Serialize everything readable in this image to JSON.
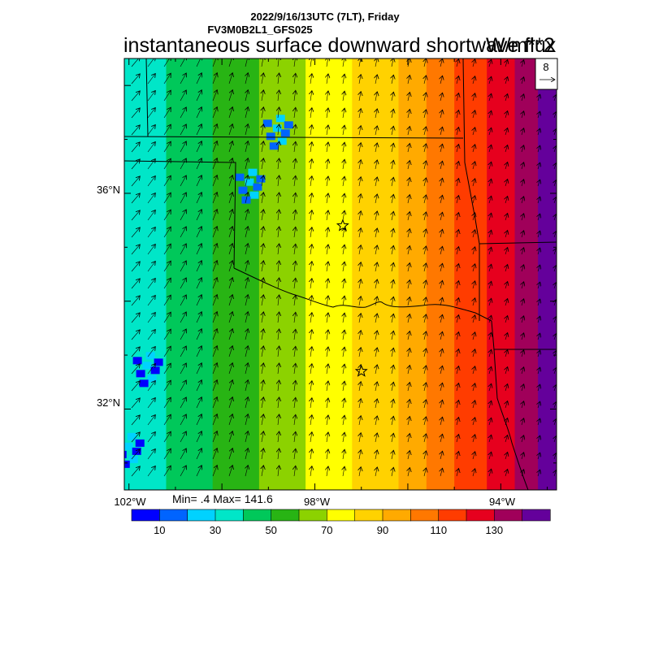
{
  "header": {
    "line1": "2022/9/16/13UTC (7LT), Friday",
    "line2": "FV3M0B2L1_GFS025",
    "title": "instantaneous surface downward shortwave flux",
    "units": "W/m**2"
  },
  "map": {
    "lat_labels": [
      "36°N",
      "32°N"
    ],
    "lon_labels": [
      "102°W",
      "98°W",
      "94°W"
    ],
    "vector_ref": "8",
    "min_max": "Min= .4 Max= 141.6"
  },
  "colorbar": {
    "colors": [
      "#0000ff",
      "#0064ff",
      "#00d2ff",
      "#00e6c8",
      "#00c85a",
      "#28b414",
      "#8cd200",
      "#ffff00",
      "#ffd200",
      "#ffaa00",
      "#ff7800",
      "#ff3c00",
      "#e6001e",
      "#a0005a",
      "#64009b"
    ],
    "tick_labels": [
      "10",
      "30",
      "50",
      "70",
      "90",
      "110",
      "130"
    ]
  },
  "chart_data": {
    "type": "heatmap",
    "variable": "instantaneous surface downward shortwave flux",
    "units": "W/m**2",
    "min": 0.4,
    "max": 141.6,
    "levels": [
      10,
      20,
      30,
      40,
      50,
      60,
      70,
      80,
      90,
      100,
      110,
      120,
      130,
      140
    ],
    "lon_range": [
      -102.1,
      -92.8
    ],
    "lat_range": [
      30.5,
      38.5
    ],
    "lon_ticks": [
      -102,
      -98,
      -94
    ],
    "lat_ticks": [
      36,
      32
    ],
    "field_bands": [
      {
        "lon_start": -102.1,
        "lon_end": -101.2,
        "value": 35
      },
      {
        "lon_start": -101.2,
        "lon_end": -100.2,
        "value": 45
      },
      {
        "lon_start": -100.2,
        "lon_end": -99.2,
        "value": 55
      },
      {
        "lon_start": -99.2,
        "lon_end": -98.2,
        "value": 65
      },
      {
        "lon_start": -98.2,
        "lon_end": -97.2,
        "value": 75
      },
      {
        "lon_start": -97.2,
        "lon_end": -96.2,
        "value": 85
      },
      {
        "lon_start": -96.2,
        "lon_end": -95.6,
        "value": 95
      },
      {
        "lon_start": -95.6,
        "lon_end": -95.0,
        "value": 105
      },
      {
        "lon_start": -95.0,
        "lon_end": -94.3,
        "value": 115
      },
      {
        "lon_start": -94.3,
        "lon_end": -93.7,
        "value": 125
      },
      {
        "lon_start": -93.7,
        "lon_end": -93.2,
        "value": 135
      },
      {
        "lon_start": -93.2,
        "lon_end": -92.8,
        "value": 140
      }
    ],
    "low_value_clusters": [
      {
        "lon": -101.6,
        "lat": 32.8,
        "value": 5
      },
      {
        "lon": -102.0,
        "lat": 31.3,
        "value": 5
      },
      {
        "lon": -98.8,
        "lat": 37.2,
        "value": 10
      },
      {
        "lon": -99.4,
        "lat": 36.2,
        "value": 10
      }
    ],
    "stations": [
      {
        "lon": -97.4,
        "lat": 35.4
      },
      {
        "lon": -97.0,
        "lat": 32.7
      }
    ],
    "vector_reference": 8
  }
}
